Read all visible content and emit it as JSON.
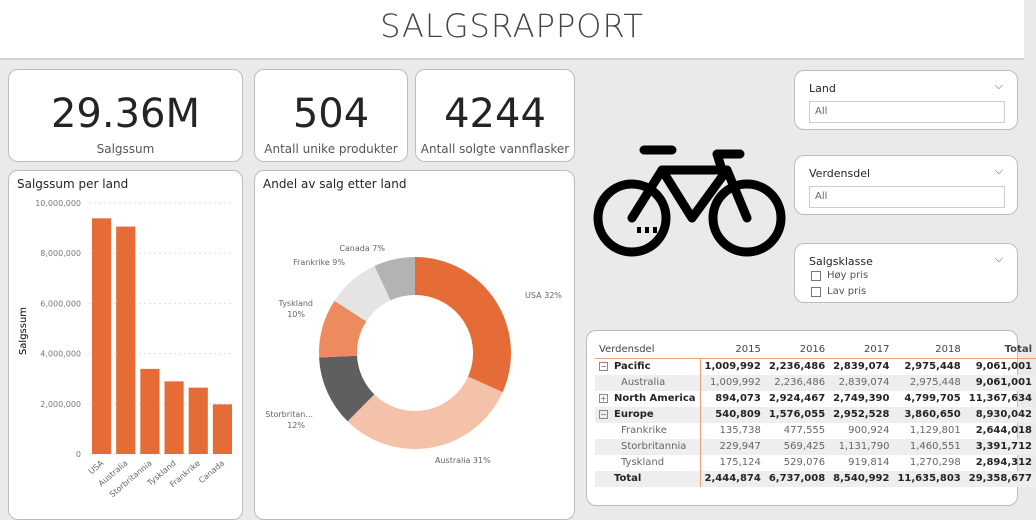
{
  "title": "SALGSRAPPORT",
  "kpis": [
    {
      "value": "29.36M",
      "label": "Salgssum"
    },
    {
      "value": "504",
      "label": "Antall unike produkter"
    },
    {
      "value": "4244",
      "label": "Antall solgte vannflasker"
    }
  ],
  "slicers": {
    "land": {
      "title": "Land",
      "value": "All"
    },
    "verdensdel": {
      "title": "Verdensdel",
      "value": "All"
    },
    "salgsklasse": {
      "title": "Salgsklasse",
      "options": [
        "Høy pris",
        "Lav pris"
      ]
    }
  },
  "chart_data": [
    {
      "type": "bar",
      "title": "Salgssum per land",
      "xlabel": "",
      "ylabel": "Salgssum",
      "ylim": [
        0,
        10000000
      ],
      "yticks": [
        "0",
        "2,000,000",
        "4,000,000",
        "6,000,000",
        "8,000,000",
        "10,000,000"
      ],
      "categories": [
        "USA",
        "Australia",
        "Storbritannia",
        "Tyskland",
        "Frankrike",
        "Canada"
      ],
      "values": [
        9389790,
        9061001,
        3391712,
        2894312,
        2644018,
        1977844
      ],
      "color": "#e66c37"
    },
    {
      "type": "pie",
      "title": "Andel av salg etter land",
      "categories": [
        "USA",
        "Australia",
        "Storbritannia",
        "Tyskland",
        "Frankrike",
        "Canada"
      ],
      "values": [
        32,
        31,
        12,
        10,
        9,
        7
      ],
      "labels": [
        "USA 32%",
        "Australia 31%",
        "Storbritan... 12%",
        "Tyskland 10%",
        "Frankrike 9%",
        "Canada 7%"
      ],
      "colors": [
        "#e66c37",
        "#f4c2a9",
        "#5f5f5f",
        "#ed8b5e",
        "#e4e4e4",
        "#b3b3b3"
      ]
    }
  ],
  "table": {
    "headers": [
      "Verdensdel",
      "2015",
      "2016",
      "2017",
      "2018",
      "Total"
    ],
    "rows": [
      {
        "name": "Pacific",
        "level": 0,
        "exp": "−",
        "vals": [
          "1,009,992",
          "2,236,486",
          "2,839,074",
          "2,975,448",
          "9,061,001"
        ]
      },
      {
        "name": "Australia",
        "level": 1,
        "vals": [
          "1,009,992",
          "2,236,486",
          "2,839,074",
          "2,975,448",
          "9,061,001"
        ]
      },
      {
        "name": "North America",
        "level": 0,
        "exp": "+",
        "vals": [
          "894,073",
          "2,924,467",
          "2,749,390",
          "4,799,705",
          "11,367,634"
        ]
      },
      {
        "name": "Europe",
        "level": 0,
        "exp": "−",
        "vals": [
          "540,809",
          "1,576,055",
          "2,952,528",
          "3,860,650",
          "8,930,042"
        ]
      },
      {
        "name": "Frankrike",
        "level": 1,
        "vals": [
          "135,738",
          "477,555",
          "900,924",
          "1,129,801",
          "2,644,018"
        ]
      },
      {
        "name": "Storbritannia",
        "level": 1,
        "vals": [
          "229,947",
          "569,425",
          "1,131,790",
          "1,460,551",
          "3,391,712"
        ]
      },
      {
        "name": "Tyskland",
        "level": 1,
        "vals": [
          "175,124",
          "529,076",
          "919,814",
          "1,270,298",
          "2,894,312"
        ]
      },
      {
        "name": "Total",
        "level": 0,
        "vals": [
          "2,444,874",
          "6,737,008",
          "8,540,992",
          "11,635,803",
          "29,358,677"
        ]
      }
    ]
  }
}
